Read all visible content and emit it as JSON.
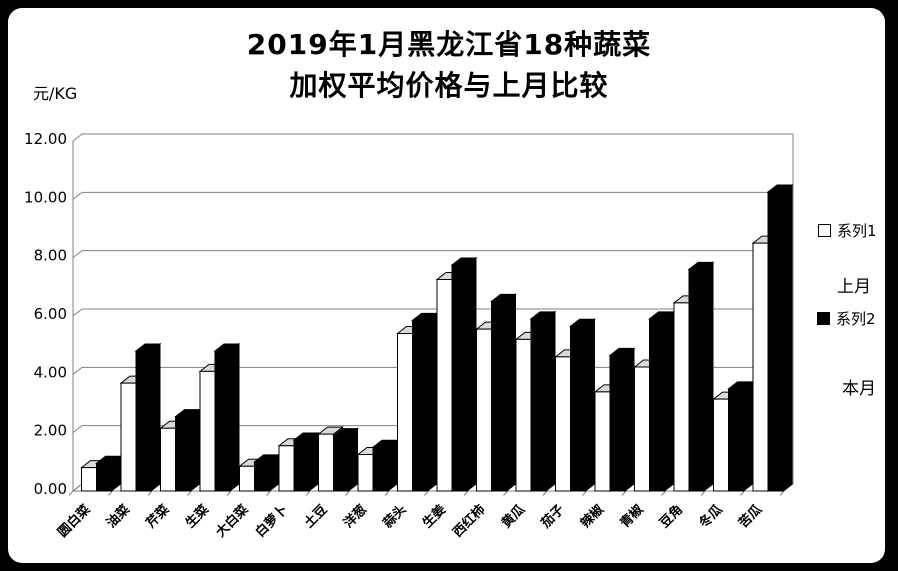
{
  "frame": {
    "background": "#000000",
    "panel_background": "#ffffff"
  },
  "title": {
    "line1": "2019年1月黑龙江省18种蔬菜",
    "line2": "加权平均价格与上月比较"
  },
  "y_axis": {
    "unit_label": "元/KG",
    "tick_labels": [
      "12.00",
      "10.00",
      "8.00",
      "6.00",
      "4.00",
      "2.00",
      "0.00"
    ]
  },
  "legend": {
    "entries": [
      {
        "label": "系列1",
        "note": "上月",
        "color": "#ffffff"
      },
      {
        "label": "系列2",
        "note": "本月",
        "color": "#000000"
      }
    ]
  },
  "chart_data": {
    "type": "bar",
    "style": "3d-clustered-column",
    "title": "2019年1月黑龙江省18种蔬菜加权平均价格与上月比较",
    "ylabel": "元/KG",
    "ylim": [
      0,
      12
    ],
    "ytick_step": 2,
    "grid": true,
    "legend_position": "right",
    "categories": [
      "圆白菜",
      "油菜",
      "芹菜",
      "生菜",
      "大白菜",
      "白萝卜",
      "土豆",
      "洋葱",
      "蒜头",
      "生姜",
      "西红柿",
      "黄瓜",
      "茄子",
      "辣椒",
      "青椒",
      "豆角",
      "冬瓜",
      "苦瓜"
    ],
    "series": [
      {
        "name": "系列1",
        "meaning": "上月",
        "color": "#ffffff",
        "values": [
          0.8,
          3.7,
          2.15,
          4.1,
          0.85,
          1.55,
          1.95,
          1.25,
          5.4,
          7.25,
          5.55,
          5.2,
          4.6,
          3.4,
          4.25,
          6.45,
          3.15,
          8.5
        ]
      },
      {
        "name": "系列2",
        "meaning": "本月",
        "color": "#000000",
        "values": [
          0.95,
          4.8,
          2.55,
          4.8,
          1.0,
          1.75,
          1.9,
          1.5,
          5.85,
          7.75,
          6.5,
          5.9,
          5.65,
          4.65,
          5.9,
          7.6,
          3.5,
          10.25
        ]
      }
    ]
  }
}
